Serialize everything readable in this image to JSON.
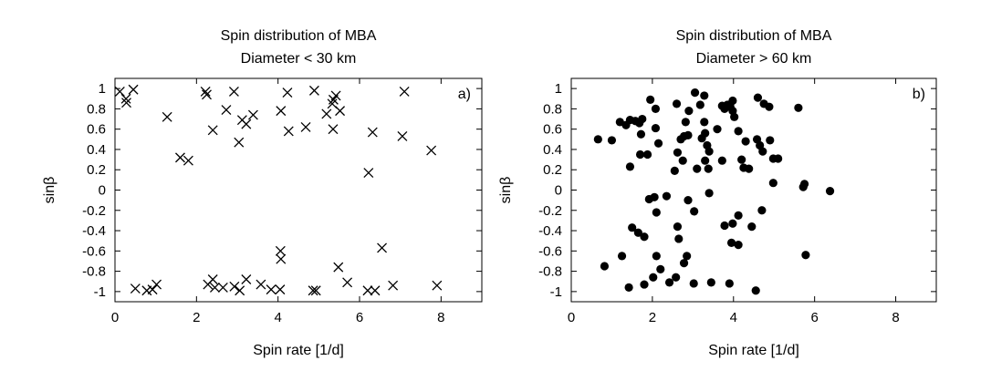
{
  "chart_data": [
    {
      "type": "scatter",
      "title": "Spin distribution of MBA",
      "subtitle": "Diameter < 30 km",
      "xlabel": "Spin rate [1/d]",
      "ylabel": "sinβ",
      "panel_label": "a)",
      "marker": "cross",
      "xlim": [
        0,
        9
      ],
      "ylim": [
        -1.1,
        1.1
      ],
      "xticks": [
        0,
        2,
        4,
        6,
        8
      ],
      "xtick_labels": [
        "0",
        "2",
        "4",
        "6",
        "8"
      ],
      "yticks": [
        1,
        0.8,
        0.6,
        0.4,
        0.2,
        0,
        -0.2,
        -0.4,
        -0.6,
        -0.8,
        -1
      ],
      "ytick_labels": [
        "1",
        "0.8",
        "0.6",
        "0.4",
        "0.2",
        "0",
        "-0.2",
        "-0.4",
        "-0.6",
        "-0.8",
        "-1"
      ],
      "grid": false,
      "points": [
        [
          0.12,
          0.97
        ],
        [
          0.27,
          0.9
        ],
        [
          0.28,
          0.86
        ],
        [
          0.45,
          0.99
        ],
        [
          1.28,
          0.72
        ],
        [
          1.6,
          0.32
        ],
        [
          1.8,
          0.29
        ],
        [
          2.22,
          0.97
        ],
        [
          2.25,
          0.94
        ],
        [
          2.4,
          0.59
        ],
        [
          2.73,
          0.79
        ],
        [
          2.92,
          0.97
        ],
        [
          3.04,
          0.47
        ],
        [
          3.12,
          0.69
        ],
        [
          3.22,
          0.65
        ],
        [
          3.39,
          0.74
        ],
        [
          4.07,
          0.78
        ],
        [
          4.23,
          0.96
        ],
        [
          4.26,
          0.58
        ],
        [
          4.68,
          0.62
        ],
        [
          4.89,
          0.98
        ],
        [
          5.19,
          0.75
        ],
        [
          5.33,
          0.85
        ],
        [
          5.36,
          0.89
        ],
        [
          5.42,
          0.93
        ],
        [
          5.52,
          0.78
        ],
        [
          5.35,
          0.6
        ],
        [
          6.32,
          0.57
        ],
        [
          6.22,
          0.17
        ],
        [
          7.05,
          0.53
        ],
        [
          7.1,
          0.97
        ],
        [
          7.76,
          0.39
        ],
        [
          0.5,
          -0.97
        ],
        [
          0.78,
          -0.99
        ],
        [
          0.92,
          -0.98
        ],
        [
          1.02,
          -0.93
        ],
        [
          2.28,
          -0.93
        ],
        [
          2.4,
          -0.88
        ],
        [
          2.45,
          -0.96
        ],
        [
          2.65,
          -0.96
        ],
        [
          2.93,
          -0.95
        ],
        [
          3.06,
          -0.99
        ],
        [
          3.22,
          -0.88
        ],
        [
          3.58,
          -0.93
        ],
        [
          3.83,
          -0.98
        ],
        [
          4.05,
          -0.98
        ],
        [
          4.06,
          -0.6
        ],
        [
          4.07,
          -0.68
        ],
        [
          4.86,
          -0.99
        ],
        [
          4.93,
          -0.99
        ],
        [
          5.48,
          -0.76
        ],
        [
          5.7,
          -0.91
        ],
        [
          6.2,
          -0.99
        ],
        [
          6.38,
          -0.99
        ],
        [
          6.55,
          -0.57
        ],
        [
          6.82,
          -0.94
        ],
        [
          7.9,
          -0.94
        ]
      ]
    },
    {
      "type": "scatter",
      "title": "Spin distribution of MBA",
      "subtitle": "Diameter > 60 km",
      "xlabel": "Spin rate [1/d]",
      "ylabel": "sinβ",
      "panel_label": "b)",
      "marker": "dot",
      "xlim": [
        0,
        9
      ],
      "ylim": [
        -1.1,
        1.1
      ],
      "xticks": [
        0,
        2,
        4,
        6,
        8
      ],
      "xtick_labels": [
        "0",
        "2",
        "4",
        "6",
        "8"
      ],
      "yticks": [
        1,
        0.8,
        0.6,
        0.4,
        0.2,
        0,
        -0.2,
        -0.4,
        -0.6,
        -0.8,
        -1
      ],
      "ytick_labels": [
        "1",
        "0.8",
        "0.6",
        "0.4",
        "0.2",
        "0",
        "-0.2",
        "-0.4",
        "-0.6",
        "-0.8",
        "-1"
      ],
      "grid": false,
      "points": [
        [
          0.66,
          0.5
        ],
        [
          1.0,
          0.49
        ],
        [
          1.2,
          0.67
        ],
        [
          1.35,
          0.64
        ],
        [
          1.45,
          0.69
        ],
        [
          1.58,
          0.68
        ],
        [
          1.68,
          0.66
        ],
        [
          1.75,
          0.7
        ],
        [
          1.72,
          0.55
        ],
        [
          1.95,
          0.89
        ],
        [
          2.08,
          0.8
        ],
        [
          1.88,
          0.35
        ],
        [
          1.7,
          0.35
        ],
        [
          1.45,
          0.23
        ],
        [
          2.08,
          0.61
        ],
        [
          2.15,
          0.46
        ],
        [
          2.6,
          0.85
        ],
        [
          2.7,
          0.5
        ],
        [
          2.78,
          0.53
        ],
        [
          2.82,
          0.67
        ],
        [
          2.9,
          0.78
        ],
        [
          2.88,
          0.54
        ],
        [
          2.62,
          0.37
        ],
        [
          2.55,
          0.19
        ],
        [
          2.75,
          0.29
        ],
        [
          3.05,
          0.96
        ],
        [
          3.28,
          0.93
        ],
        [
          3.18,
          0.84
        ],
        [
          3.28,
          0.67
        ],
        [
          3.3,
          0.56
        ],
        [
          3.22,
          0.51
        ],
        [
          3.35,
          0.44
        ],
        [
          3.4,
          0.38
        ],
        [
          3.3,
          0.29
        ],
        [
          3.38,
          0.21
        ],
        [
          3.1,
          0.21
        ],
        [
          3.6,
          0.6
        ],
        [
          3.72,
          0.83
        ],
        [
          3.78,
          0.8
        ],
        [
          3.85,
          0.84
        ],
        [
          3.92,
          0.82
        ],
        [
          3.98,
          0.78
        ],
        [
          3.98,
          0.88
        ],
        [
          4.02,
          0.72
        ],
        [
          3.72,
          0.29
        ],
        [
          4.12,
          0.58
        ],
        [
          4.3,
          0.48
        ],
        [
          4.2,
          0.3
        ],
        [
          4.25,
          0.22
        ],
        [
          4.38,
          0.21
        ],
        [
          4.6,
          0.91
        ],
        [
          4.75,
          0.85
        ],
        [
          4.88,
          0.82
        ],
        [
          4.58,
          0.5
        ],
        [
          4.65,
          0.44
        ],
        [
          4.72,
          0.38
        ],
        [
          4.9,
          0.49
        ],
        [
          4.98,
          0.31
        ],
        [
          5.1,
          0.31
        ],
        [
          4.98,
          0.07
        ],
        [
          5.6,
          0.81
        ],
        [
          5.72,
          0.03
        ],
        [
          5.75,
          0.06
        ],
        [
          6.38,
          -0.01
        ],
        [
          1.92,
          -0.09
        ],
        [
          2.05,
          -0.07
        ],
        [
          2.35,
          -0.06
        ],
        [
          2.1,
          -0.22
        ],
        [
          2.88,
          -0.1
        ],
        [
          3.03,
          -0.21
        ],
        [
          3.4,
          -0.03
        ],
        [
          3.78,
          -0.35
        ],
        [
          3.98,
          -0.33
        ],
        [
          4.12,
          -0.25
        ],
        [
          4.45,
          -0.36
        ],
        [
          4.7,
          -0.2
        ],
        [
          1.5,
          -0.37
        ],
        [
          1.65,
          -0.42
        ],
        [
          1.8,
          -0.46
        ],
        [
          2.62,
          -0.36
        ],
        [
          2.65,
          -0.48
        ],
        [
          3.95,
          -0.52
        ],
        [
          4.12,
          -0.54
        ],
        [
          5.78,
          -0.64
        ],
        [
          1.25,
          -0.65
        ],
        [
          0.82,
          -0.75
        ],
        [
          2.1,
          -0.65
        ],
        [
          2.2,
          -0.78
        ],
        [
          2.85,
          -0.65
        ],
        [
          2.78,
          -0.72
        ],
        [
          2.02,
          -0.86
        ],
        [
          2.58,
          -0.86
        ],
        [
          1.8,
          -0.93
        ],
        [
          1.42,
          -0.96
        ],
        [
          2.42,
          -0.91
        ],
        [
          3.02,
          -0.92
        ],
        [
          3.45,
          -0.91
        ],
        [
          3.9,
          -0.92
        ],
        [
          4.55,
          -0.99
        ]
      ]
    }
  ]
}
